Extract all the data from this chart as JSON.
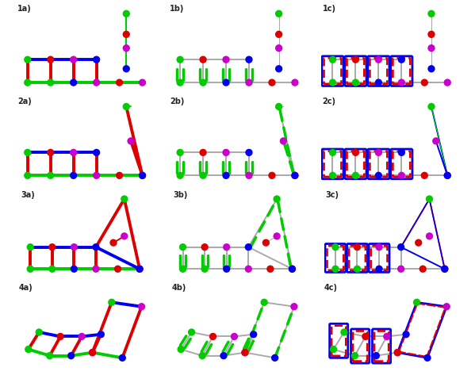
{
  "labels": [
    [
      "1a)",
      "1b)",
      "1c)"
    ],
    [
      "2a)",
      "2b)",
      "2c)"
    ],
    [
      "3a)",
      "3b)",
      "3c)"
    ],
    [
      "4a)",
      "4b)",
      "4c)"
    ]
  ],
  "colors": {
    "green": "#00cc00",
    "red": "#dd0000",
    "blue": "#0000ee",
    "magenta": "#cc00cc",
    "lgray": "#aaaaaa"
  },
  "background": "#ffffff",
  "label_color": "#222222",
  "label_fontsize": 7,
  "NS": 45,
  "LW": 2.8,
  "LW2": 1.4
}
